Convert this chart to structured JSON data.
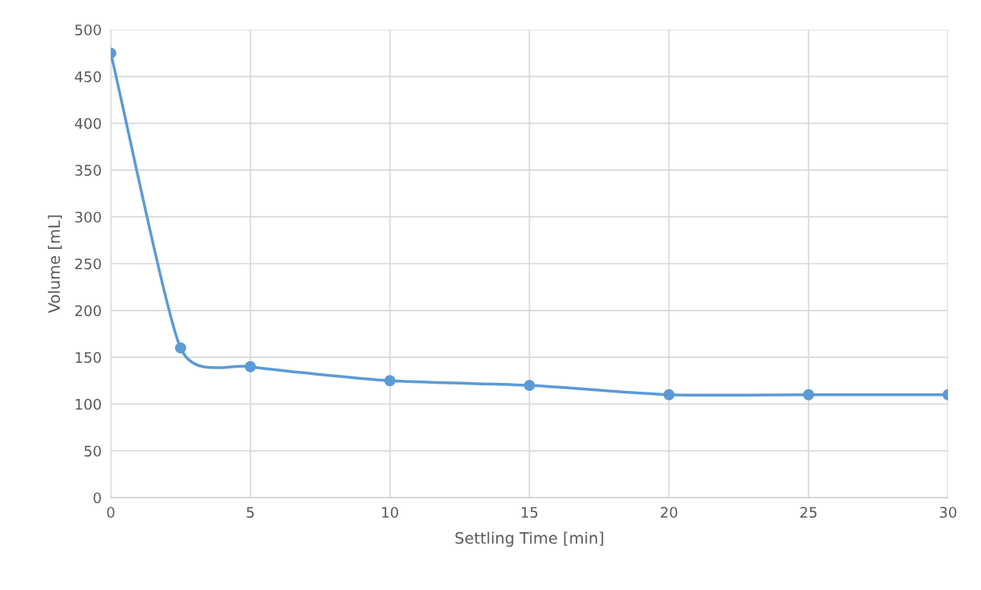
{
  "chart_data": {
    "type": "line",
    "xlabel": "Settling Time [min]",
    "ylabel": "Volume [mL]",
    "x": [
      0,
      2.5,
      5,
      10,
      15,
      20,
      25,
      30
    ],
    "series": [
      {
        "color": "#5b9bd5",
        "values": [
          475,
          160,
          140,
          125,
          120,
          110,
          110,
          110
        ]
      }
    ],
    "xlim": [
      0,
      30
    ],
    "xticks": [
      0,
      5,
      10,
      15,
      20,
      25,
      30
    ],
    "ylim": [
      0,
      500
    ],
    "yticks": [
      0,
      50,
      100,
      150,
      200,
      250,
      300,
      350,
      400,
      450,
      500
    ],
    "grid": true,
    "marker": "circle",
    "line_style": "solid"
  }
}
